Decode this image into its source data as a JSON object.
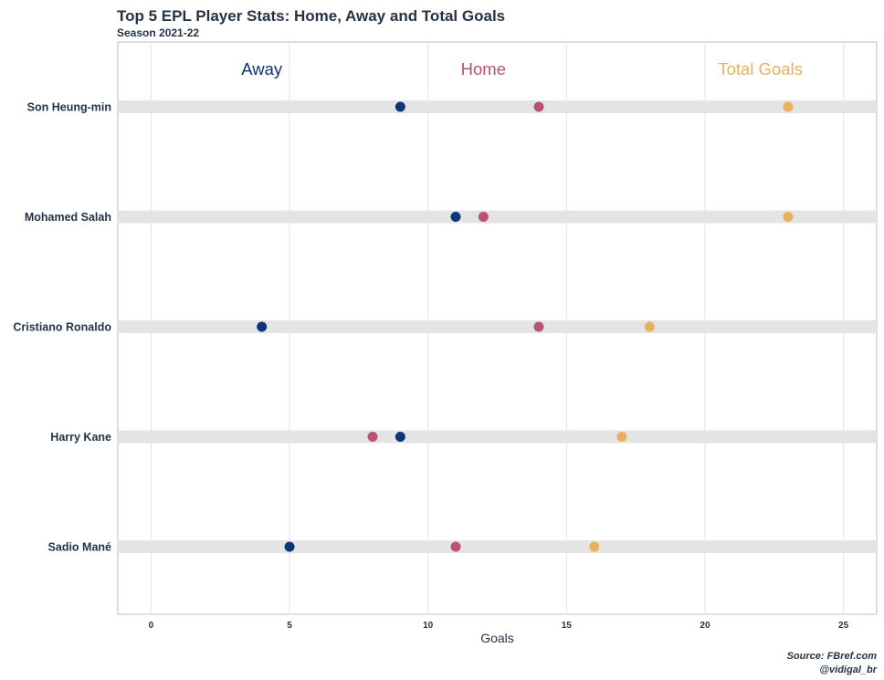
{
  "chart_data": {
    "type": "scatter",
    "title": "Top 5 EPL Player Stats: Home, Away and Total Goals",
    "subtitle": "Season 2021-22",
    "xlabel": "Goals",
    "ylabel": "",
    "xlim": [
      -1.2,
      26.2
    ],
    "xticks": [
      0,
      5,
      10,
      15,
      20,
      25
    ],
    "grid": true,
    "categories": [
      "Son Heung-min",
      "Mohamed Salah",
      "Cristiano Ronaldo",
      "Harry Kane",
      "Sadio Mané"
    ],
    "series": [
      {
        "name": "Away",
        "color": "#0e3578",
        "values": [
          9,
          11,
          4,
          9,
          5
        ]
      },
      {
        "name": "Home",
        "color": "#b8546e",
        "values": [
          14,
          12,
          14,
          8,
          11
        ]
      },
      {
        "name": "Total Goals",
        "color": "#e8b25c",
        "values": [
          23,
          23,
          18,
          17,
          16
        ]
      }
    ],
    "legend_labels": [
      {
        "name": "Away",
        "x": 4,
        "color": "#0e3578"
      },
      {
        "name": "Home",
        "x": 12,
        "color": "#b8546e"
      },
      {
        "name": "Total Goals",
        "x": 22,
        "color": "#e8b25c"
      }
    ],
    "caption": [
      "Source: FBref.com",
      "@vidigal_br"
    ]
  }
}
